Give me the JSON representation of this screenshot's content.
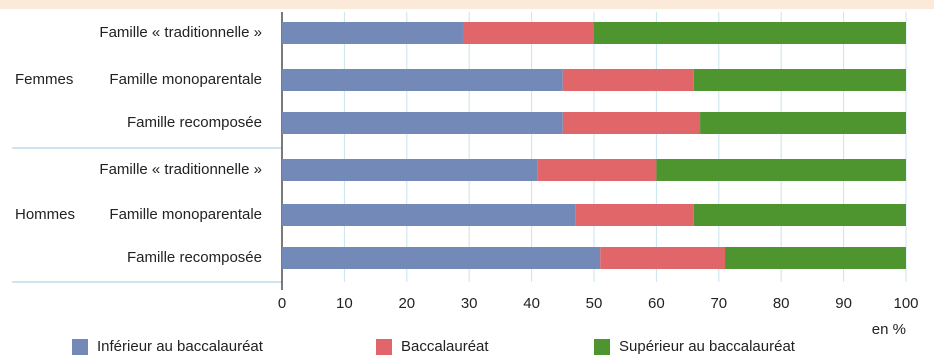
{
  "chart_data": {
    "type": "bar",
    "stacked": true,
    "orientation": "horizontal",
    "groups": [
      {
        "label": "Femmes",
        "rows": [
          {
            "label": "Famille « traditionnelle »",
            "values": [
              29,
              21,
              50
            ]
          },
          {
            "label": "Famille monoparentale",
            "values": [
              45,
              21,
              34
            ]
          },
          {
            "label": "Famille recomposée",
            "values": [
              45,
              22,
              33
            ]
          }
        ]
      },
      {
        "label": "Hommes",
        "rows": [
          {
            "label": "Famille « traditionnelle »",
            "values": [
              41,
              19,
              40
            ]
          },
          {
            "label": "Famille monoparentale",
            "values": [
              47,
              19,
              34
            ]
          },
          {
            "label": "Famille recomposée",
            "values": [
              51,
              20,
              29
            ]
          }
        ]
      }
    ],
    "series": [
      {
        "name": "Inférieur au baccalauréat",
        "color": "#7389b8"
      },
      {
        "name": "Baccalauréat",
        "color": "#e0666a"
      },
      {
        "name": "Supérieur au baccalauréat",
        "color": "#4e952f"
      }
    ],
    "xlim": [
      0,
      100
    ],
    "xticks": [
      0,
      10,
      20,
      30,
      40,
      50,
      60,
      70,
      80,
      90,
      100
    ],
    "xunit": "en %",
    "grid": true,
    "legend_position": "bottom"
  }
}
